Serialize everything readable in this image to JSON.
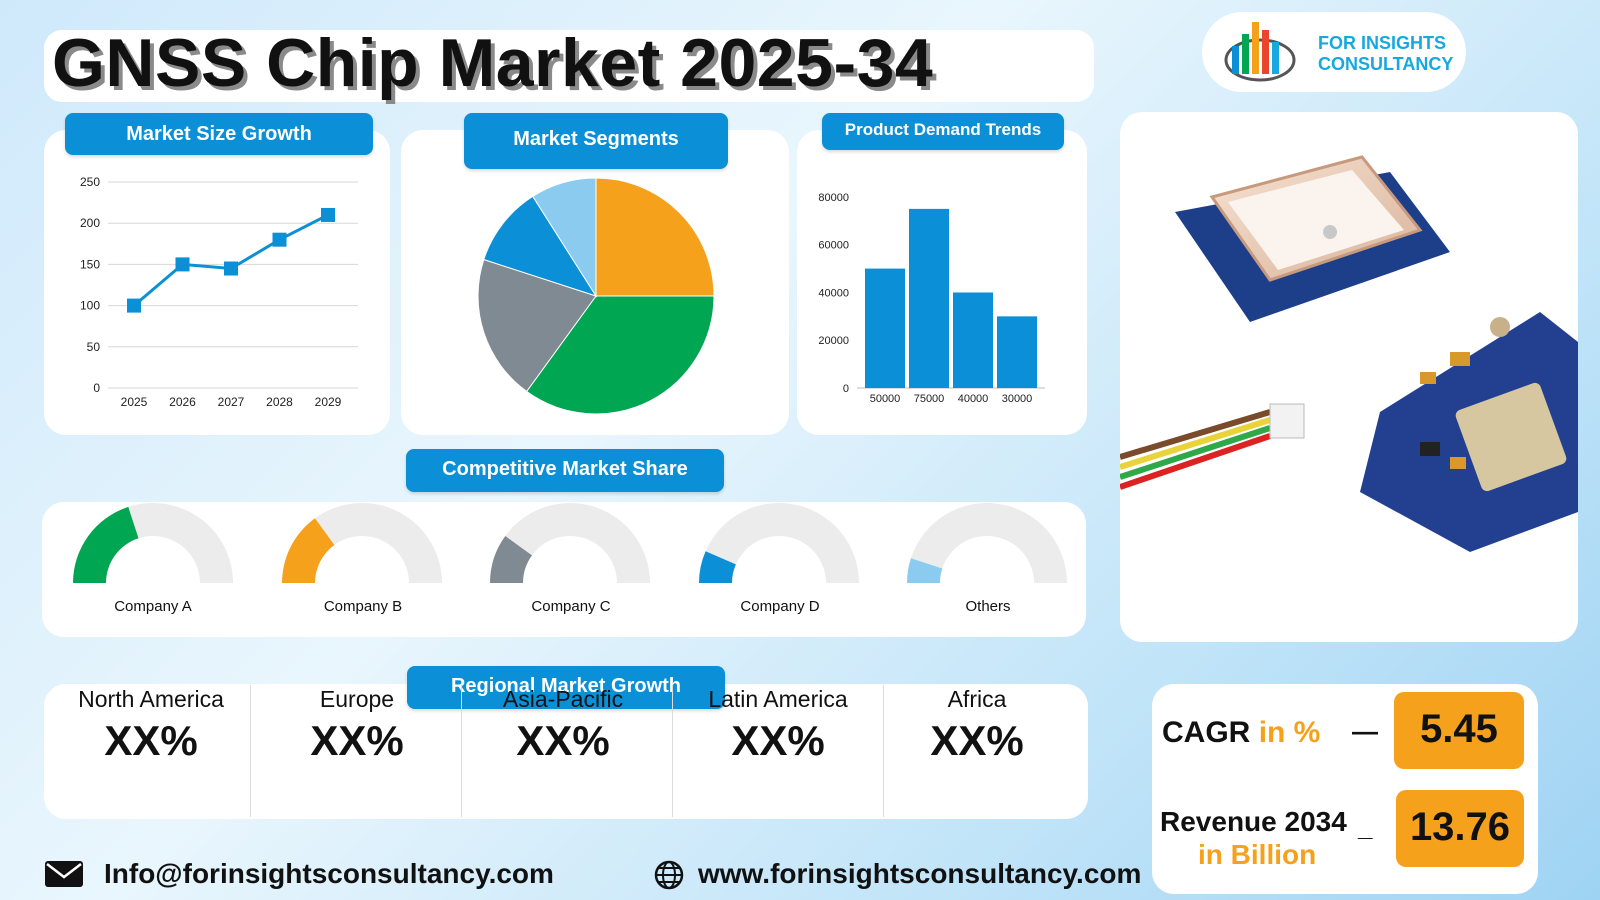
{
  "header": {
    "title": "GNSS Chip Market 2025-34"
  },
  "logo": {
    "line1": "FOR INSIGHTS",
    "line2": "CONSULTANCY"
  },
  "panels": {
    "market_size": "Market Size Growth",
    "segments": "Market Segments",
    "demand": "Product Demand Trends",
    "competitive": "Competitive Market Share",
    "regional": "Regional Market Growth"
  },
  "chart_data": [
    {
      "type": "line",
      "title": "Market Size Growth",
      "categories": [
        "2025",
        "2026",
        "2027",
        "2028",
        "2029"
      ],
      "values": [
        100,
        150,
        145,
        180,
        210
      ],
      "yticks": [
        "0",
        "50",
        "100",
        "150",
        "200",
        "250"
      ],
      "ylim": [
        0,
        250
      ],
      "grid": true,
      "color": "#0b8fd6"
    },
    {
      "type": "pie",
      "title": "Market Segments",
      "values": [
        25,
        35,
        20,
        11,
        9
      ],
      "colors": [
        "#f5a11c",
        "#00a651",
        "#808a93",
        "#0b8fd6",
        "#8ccbf0"
      ]
    },
    {
      "type": "bar",
      "title": "Product Demand Trends",
      "categories": [
        "50000",
        "75000",
        "40000",
        "30000"
      ],
      "values": [
        50000,
        75000,
        40000,
        30000
      ],
      "yticks": [
        "0",
        "20000",
        "40000",
        "60000",
        "80000"
      ],
      "ylim": [
        0,
        85000
      ],
      "color": "#0b8fd6"
    },
    {
      "type": "gauge",
      "title": "Competitive Market Share",
      "items": [
        {
          "name": "Company A",
          "value": 0.4,
          "color": "#00a651"
        },
        {
          "name": "Company B",
          "value": 0.3,
          "color": "#f5a11c"
        },
        {
          "name": "Company C",
          "value": 0.2,
          "color": "#808a93"
        },
        {
          "name": "Company D",
          "value": 0.13,
          "color": "#0b8fd6"
        },
        {
          "name": "Others",
          "value": 0.1,
          "color": "#8ccbf0"
        }
      ]
    }
  ],
  "regions": [
    {
      "name": "North America",
      "value": "XX%"
    },
    {
      "name": "Europe",
      "value": "XX%"
    },
    {
      "name": "Asia-Pacific",
      "value": "XX%"
    },
    {
      "name": "Latin America",
      "value": "XX%"
    },
    {
      "name": "Africa",
      "value": "XX%"
    }
  ],
  "kpis": {
    "cagr_label": "CAGR",
    "cagr_unit": "in %",
    "cagr_value": "5.45",
    "revenue_label": "Revenue 2034",
    "revenue_unit": "in Billion",
    "revenue_value": "13.76",
    "dash": "—",
    "dash2": "_"
  },
  "footer": {
    "email": "Info@forinsightsconsultancy.com",
    "website": "www.forinsightsconsultancy.com"
  },
  "colors": {
    "accent": "#0b8fd6",
    "highlight": "#f5a11c"
  }
}
